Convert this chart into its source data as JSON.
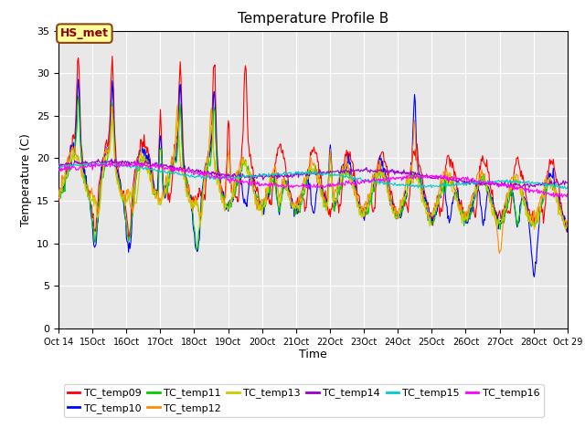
{
  "title": "Temperature Profile B",
  "xlabel": "Time",
  "ylabel": "Temperature (C)",
  "ylim": [
    0,
    35
  ],
  "xlim_days": [
    14,
    29
  ],
  "annotation_label": "HS_met",
  "series_colors": {
    "TC_temp09": "#FF0000",
    "TC_temp10": "#0000FF",
    "TC_temp11": "#00CC00",
    "TC_temp12": "#FF8C00",
    "TC_temp13": "#CCCC00",
    "TC_temp14": "#9900CC",
    "TC_temp15": "#00CCCC",
    "TC_temp16": "#FF00FF"
  },
  "background_color": "#E8E8E8",
  "figure_background": "#FFFFFF",
  "grid_color": "#FFFFFF",
  "annotation_bg": "#FFFF99",
  "annotation_border": "#8B4513",
  "figsize": [
    6.4,
    4.8
  ],
  "dpi": 100
}
